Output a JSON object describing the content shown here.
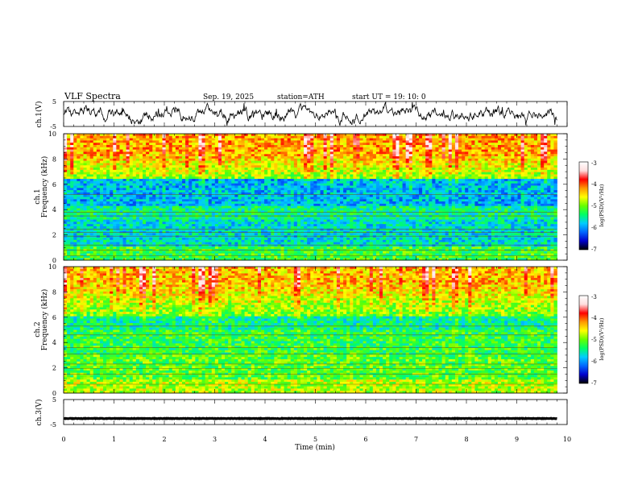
{
  "header": {
    "title": "VLF  Spectra",
    "date": "Sep. 19, 2025",
    "station": "station=ATH",
    "start_ut": "start  UT  =    19: 10: 0"
  },
  "chart_data": [
    {
      "type": "line",
      "name": "ch1-waveform",
      "ylabel": "ch.1(V)",
      "ylim": [
        -5,
        5
      ],
      "yticks": [
        "5",
        "-5"
      ],
      "x_range_min": [
        0,
        9.8
      ],
      "approx_level": 0,
      "approx_amplitude": 3
    },
    {
      "type": "heatmap",
      "name": "ch1-spectrogram",
      "ylabel_top": "ch.1",
      "ylabel": "Frequency  (kHz)",
      "ylim": [
        0,
        10
      ],
      "yticks": [
        "0",
        "2",
        "4",
        "6",
        "8",
        "10"
      ],
      "x_range_min": [
        0,
        9.8
      ],
      "colorbar": {
        "label": "log(PSD)(V²/Hz)",
        "range": [
          -7,
          -3
        ],
        "ticks": [
          "-3",
          "-4",
          "-5",
          "-6",
          "-7"
        ]
      }
    },
    {
      "type": "heatmap",
      "name": "ch2-spectrogram",
      "ylabel_top": "ch.2",
      "ylabel": "Frequency  (kHz)",
      "ylim": [
        0,
        10
      ],
      "yticks": [
        "0",
        "2",
        "4",
        "6",
        "8",
        "10"
      ],
      "x_range_min": [
        0,
        9.8
      ],
      "colorbar": {
        "label": "log(PSD)(V²/Hz)",
        "range": [
          -7,
          -3
        ],
        "ticks": [
          "-3",
          "-4",
          "-5",
          "-6",
          "-7"
        ]
      }
    },
    {
      "type": "line",
      "name": "ch3-waveform",
      "ylabel": "ch.3(V)",
      "ylim": [
        -5,
        5
      ],
      "yticks": [
        "5",
        "-5"
      ],
      "x_range_min": [
        0,
        9.8
      ],
      "approx_level": -2.6,
      "approx_amplitude": 0.2
    }
  ],
  "xaxis": {
    "label": "Time  (min)",
    "ticks": [
      "0",
      "1",
      "2",
      "3",
      "4",
      "5",
      "6",
      "7",
      "8",
      "9",
      "10"
    ],
    "xlim": [
      0,
      10
    ]
  },
  "colors": {
    "colormap": [
      "#000000",
      "#0000cc",
      "#0066ff",
      "#00ccff",
      "#00ff66",
      "#66ff00",
      "#ffff00",
      "#ff9900",
      "#ff0000",
      "#ffdddd",
      "#ffffff"
    ]
  }
}
